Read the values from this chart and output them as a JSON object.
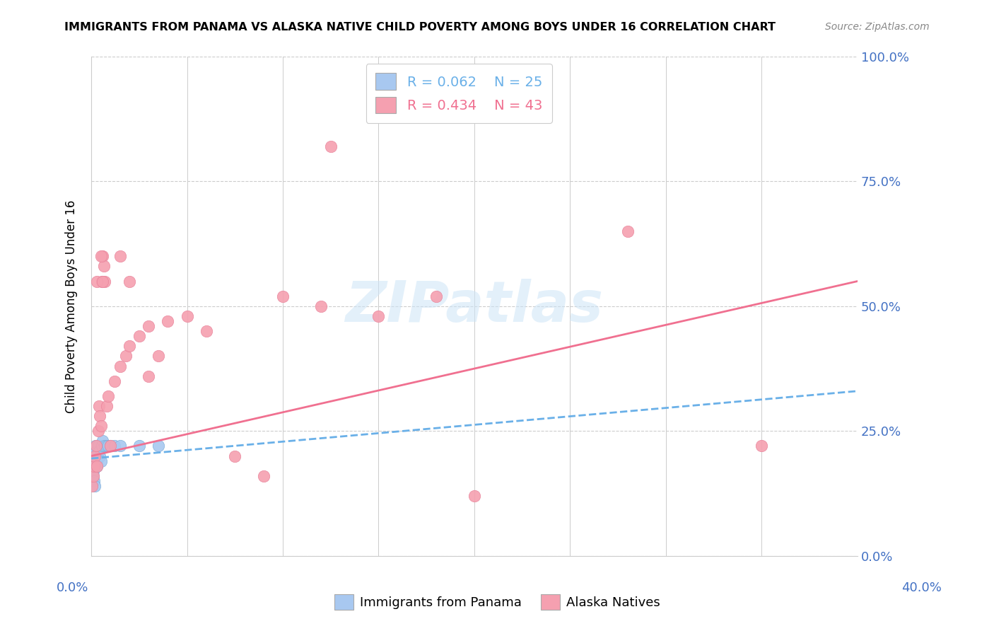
{
  "title": "IMMIGRANTS FROM PANAMA VS ALASKA NATIVE CHILD POVERTY AMONG BOYS UNDER 16 CORRELATION CHART",
  "source": "Source: ZipAtlas.com",
  "ylabel": "Child Poverty Among Boys Under 16",
  "ylabel_ticks_vals": [
    0,
    25,
    50,
    75,
    100
  ],
  "xlim": [
    0,
    40
  ],
  "ylim": [
    0,
    100
  ],
  "blue_label": "Immigrants from Panama",
  "pink_label": "Alaska Natives",
  "watermark": "ZIPatlas",
  "blue_color": "#a8c8f0",
  "pink_color": "#f5a0b0",
  "blue_line_color": "#6ab0e8",
  "pink_line_color": "#f07090",
  "blue_scatter_x": [
    0.05,
    0.08,
    0.1,
    0.12,
    0.15,
    0.18,
    0.2,
    0.22,
    0.25,
    0.28,
    0.3,
    0.35,
    0.4,
    0.45,
    0.5,
    0.55,
    0.6,
    0.7,
    0.8,
    0.9,
    1.0,
    1.2,
    1.5,
    2.5,
    3.5
  ],
  "blue_scatter_y": [
    20,
    18,
    17,
    16,
    15,
    14,
    20,
    22,
    21,
    19,
    18,
    22,
    21,
    20,
    19,
    22,
    23,
    22,
    22,
    22,
    22,
    22,
    22,
    22,
    22
  ],
  "pink_scatter_x": [
    0.05,
    0.1,
    0.15,
    0.2,
    0.25,
    0.3,
    0.35,
    0.4,
    0.45,
    0.5,
    0.55,
    0.6,
    0.65,
    0.7,
    0.8,
    0.9,
    1.0,
    1.2,
    1.5,
    1.8,
    2.0,
    2.5,
    3.0,
    3.5,
    4.0,
    5.0,
    6.0,
    7.5,
    9.0,
    10.0,
    12.0,
    12.5,
    15.0,
    18.0,
    20.0,
    28.0,
    35.0,
    0.3,
    0.5,
    0.6,
    1.5,
    2.0,
    3.0
  ],
  "pink_scatter_y": [
    14,
    16,
    18,
    20,
    22,
    18,
    25,
    30,
    28,
    26,
    55,
    60,
    58,
    55,
    30,
    32,
    22,
    35,
    60,
    40,
    42,
    44,
    46,
    40,
    47,
    48,
    45,
    20,
    16,
    52,
    50,
    82,
    48,
    52,
    12,
    65,
    22,
    55,
    60,
    55,
    38,
    55,
    36
  ],
  "blue_line_x0": 0,
  "blue_line_x1": 40,
  "blue_line_y0": 19.5,
  "blue_line_y1": 33,
  "pink_line_x0": 0,
  "pink_line_x1": 40,
  "pink_line_y0": 20,
  "pink_line_y1": 55
}
